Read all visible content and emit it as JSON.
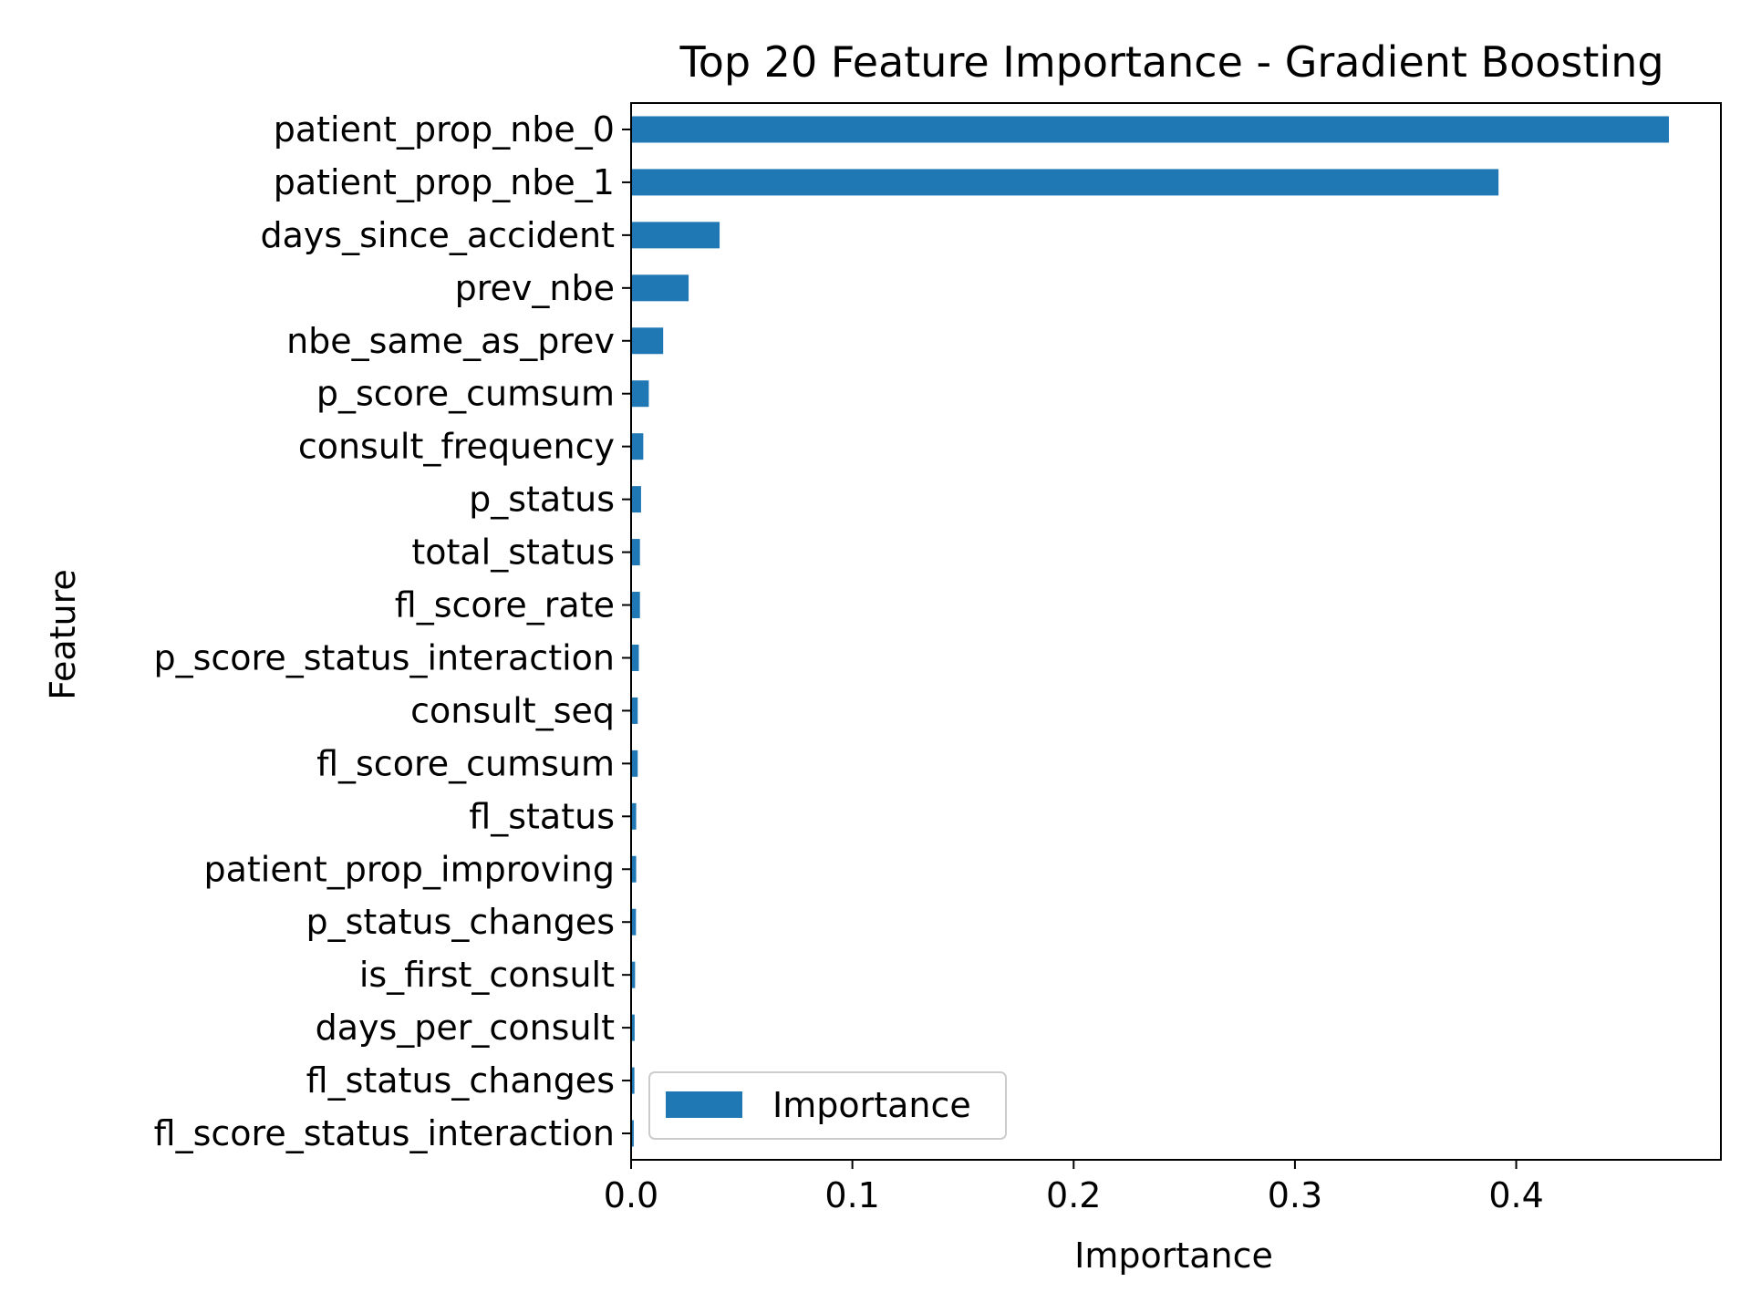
{
  "chart_data": {
    "type": "bar",
    "orientation": "horizontal",
    "title": "Top 20 Feature Importance - Gradient Boosting",
    "xlabel": "Importance",
    "ylabel": "Feature",
    "xlim": [
      0,
      0.4925
    ],
    "xticks": [
      0.0,
      0.1,
      0.2,
      0.3,
      0.4
    ],
    "xtick_labels": [
      "0.0",
      "0.1",
      "0.2",
      "0.3",
      "0.4"
    ],
    "grid": false,
    "legend": {
      "placement": "lower-left",
      "entries": [
        "Importance"
      ]
    },
    "categories": [
      "patient_prop_nbe_0",
      "patient_prop_nbe_1",
      "days_since_accident",
      "prev_nbe",
      "nbe_same_as_prev",
      "p_score_cumsum",
      "consult_frequency",
      "p_status",
      "total_status",
      "fl_score_rate",
      "p_score_status_interaction",
      "consult_seq",
      "fl_score_cumsum",
      "fl_status",
      "patient_prop_improving",
      "p_status_changes",
      "is_first_consult",
      "days_per_consult",
      "fl_status_changes",
      "fl_score_status_interaction"
    ],
    "series": [
      {
        "name": "Importance",
        "color": "#1f77b4",
        "values": [
          0.469,
          0.392,
          0.04,
          0.026,
          0.0145,
          0.008,
          0.0055,
          0.0045,
          0.004,
          0.004,
          0.0035,
          0.003,
          0.003,
          0.0023,
          0.0023,
          0.0022,
          0.0018,
          0.0016,
          0.0015,
          0.0012
        ]
      }
    ]
  }
}
